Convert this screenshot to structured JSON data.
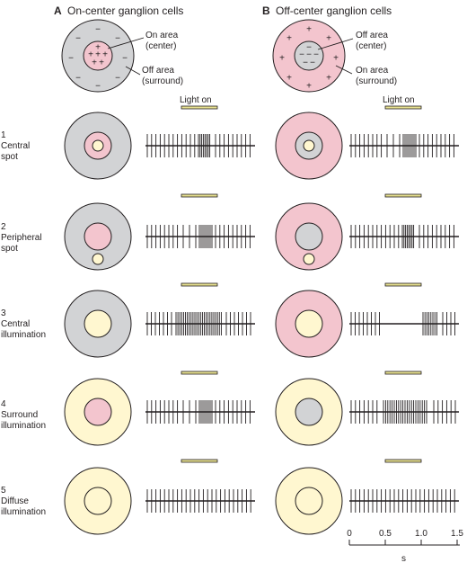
{
  "panels": {
    "a": {
      "letter": "A",
      "title": "On-center ganglion cells"
    },
    "b": {
      "letter": "B",
      "title": "Off-center ganglion cells"
    }
  },
  "schematic": {
    "a": {
      "center_label": [
        "On area",
        "(center)"
      ],
      "surround_label": [
        "Off area",
        "(surround)"
      ],
      "center_sign": "+",
      "surround_sign": "−"
    },
    "b": {
      "center_label": [
        "Off area",
        "(center)"
      ],
      "surround_label": [
        "On area",
        "(surround)"
      ],
      "center_sign": "−",
      "surround_sign": "+"
    }
  },
  "light_on_label": "Light on",
  "rows": [
    {
      "number": "1",
      "label": [
        "Central",
        "spot"
      ]
    },
    {
      "number": "2",
      "label": [
        "Peripheral",
        "spot"
      ]
    },
    {
      "number": "3",
      "label": [
        "Central",
        "illumination"
      ]
    },
    {
      "number": "4",
      "label": [
        "Surround",
        "illumination"
      ]
    },
    {
      "number": "5",
      "label": [
        "Diffuse",
        "illumination"
      ]
    }
  ],
  "time_axis": {
    "unit": "s",
    "ticks": [
      {
        "value": 0,
        "label": "0"
      },
      {
        "value": 0.5,
        "label": "0.5"
      },
      {
        "value": 1.0,
        "label": "1.0"
      },
      {
        "value": 1.5,
        "label": "1.5"
      }
    ]
  },
  "colors": {
    "gray": "#d2d3d5",
    "pink": "#f3c5ce",
    "yellow": "#fff7d0",
    "light_bar": "#e6e08f",
    "line": "#231f20"
  },
  "stimulus_window_s": [
    0.5,
    1.0
  ]
}
